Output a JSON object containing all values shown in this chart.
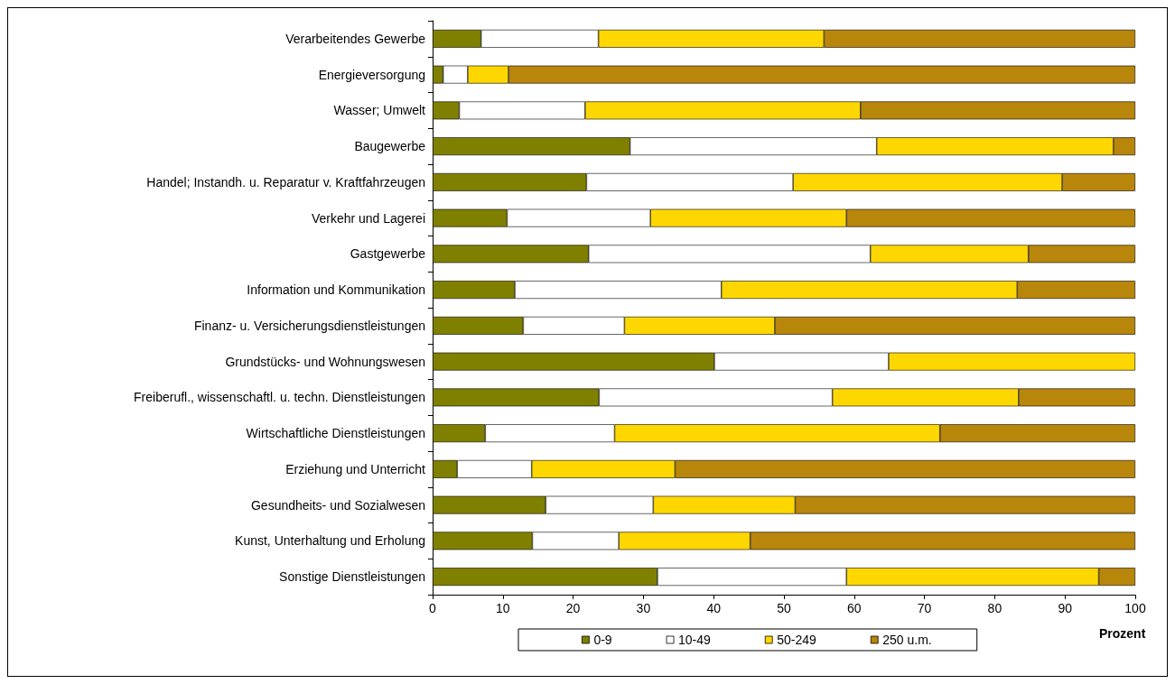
{
  "chart_data": {
    "type": "bar",
    "orientation": "horizontal",
    "stacked": true,
    "xlabel": "Prozent",
    "legend": "bottom",
    "grid": false,
    "categories": [
      "Verarbeitendes Gewerbe",
      "Energieversorgung",
      "Wasser; Umwelt",
      "Baugewerbe",
      "Handel; Instandh. u. Reparatur v. Kraftfahrzeugen",
      "Verkehr und Lagerei",
      "Gastgewerbe",
      "Information und Kommunikation",
      "Finanz- u. Versicherungsdienstleistungen",
      "Grundstücks- und Wohnungswesen",
      "Freiberufl., wissenschaftl. u. techn. Dienstleistungen",
      "Wirtschaftliche Dienstleistungen",
      "Erziehung und Unterricht",
      "Gesundheits- und Sozialwesen",
      "Kunst, Unterhaltung und Erholung",
      "Sonstige Dienstleistungen"
    ],
    "xlim": [
      0,
      100
    ],
    "xticks": [
      0,
      10,
      20,
      30,
      40,
      50,
      60,
      70,
      80,
      90,
      100
    ],
    "series": [
      {
        "name": "0-9",
        "color": "#808000",
        "values": [
          6.9,
          1.5,
          3.8,
          28.1,
          21.9,
          10.6,
          22.2,
          11.7,
          12.9,
          40.1,
          23.7,
          7.5,
          3.5,
          16.1,
          14.2,
          32.0
        ]
      },
      {
        "name": "10-49",
        "color": "#ffffff",
        "values": [
          16.7,
          3.5,
          17.9,
          35.1,
          29.4,
          20.4,
          40.1,
          29.4,
          14.4,
          24.8,
          33.2,
          18.4,
          10.6,
          15.3,
          12.3,
          26.9
        ]
      },
      {
        "name": "50-249",
        "color": "#ffd700",
        "values": [
          32.1,
          5.8,
          39.2,
          33.7,
          38.3,
          27.9,
          22.5,
          42.1,
          21.4,
          35.1,
          26.5,
          46.3,
          20.4,
          20.2,
          18.7,
          35.9
        ]
      },
      {
        "name": "250 u.m.",
        "color": "#b8860b",
        "values": [
          44.3,
          89.2,
          39.1,
          3.1,
          10.4,
          41.1,
          15.2,
          16.8,
          51.3,
          null,
          16.6,
          27.8,
          65.5,
          48.4,
          54.8,
          5.2
        ]
      }
    ]
  }
}
